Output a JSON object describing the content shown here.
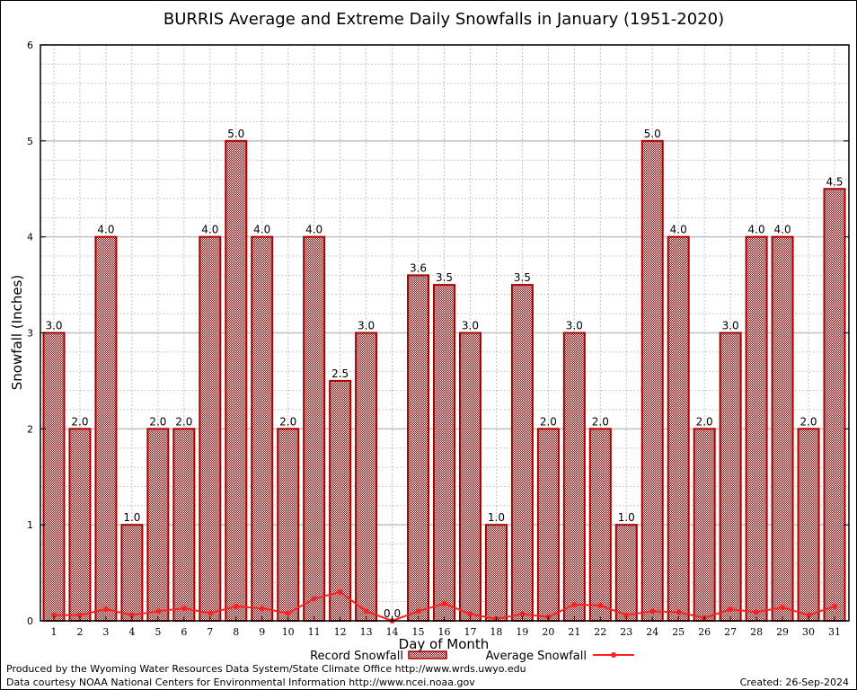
{
  "chart_data": {
    "type": "bar",
    "title": "BURRIS Average and Extreme Daily Snowfalls in January (1951-2020)",
    "xlabel": "Day of Month",
    "ylabel": "Snowfall (Inches)",
    "ylim": [
      0,
      6
    ],
    "yticks": [
      0,
      1,
      2,
      3,
      4,
      5,
      6
    ],
    "grid": true,
    "legend_position": "bottom",
    "categories": [
      "1",
      "2",
      "3",
      "4",
      "5",
      "6",
      "7",
      "8",
      "9",
      "10",
      "11",
      "12",
      "13",
      "14",
      "15",
      "16",
      "17",
      "18",
      "19",
      "20",
      "21",
      "22",
      "23",
      "24",
      "25",
      "26",
      "27",
      "28",
      "29",
      "30",
      "31"
    ],
    "series": [
      {
        "name": "Record Snowfall",
        "type": "bar",
        "color": "#aa0000",
        "values": [
          3.0,
          2.0,
          4.0,
          1.0,
          2.0,
          2.0,
          4.0,
          5.0,
          4.0,
          2.0,
          4.0,
          2.5,
          3.0,
          0.0,
          3.6,
          3.5,
          3.0,
          1.0,
          3.5,
          2.0,
          3.0,
          2.0,
          1.0,
          5.0,
          4.0,
          2.0,
          3.0,
          4.0,
          4.0,
          2.0,
          4.5
        ],
        "labels": [
          "3.0",
          "2.0",
          "4.0",
          "1.0",
          "2.0",
          "2.0",
          "4.0",
          "5.0",
          "4.0",
          "2.0",
          "4.0",
          "2.5",
          "3.0",
          "0.0",
          "3.6",
          "3.5",
          "3.0",
          "1.0",
          "3.5",
          "2.0",
          "3.0",
          "2.0",
          "1.0",
          "5.0",
          "4.0",
          "2.0",
          "3.0",
          "4.0",
          "4.0",
          "2.0",
          "4.5"
        ]
      },
      {
        "name": "Average Snowfall",
        "type": "line",
        "color": "#ff2020",
        "values": [
          0.06,
          0.06,
          0.12,
          0.06,
          0.1,
          0.13,
          0.08,
          0.15,
          0.13,
          0.08,
          0.23,
          0.3,
          0.1,
          0.0,
          0.1,
          0.18,
          0.07,
          0.02,
          0.07,
          0.04,
          0.17,
          0.16,
          0.06,
          0.1,
          0.09,
          0.03,
          0.12,
          0.09,
          0.14,
          0.06,
          0.15
        ]
      }
    ]
  },
  "footer": {
    "produced": "Produced by the Wyoming Water Resources Data System/State Climate Office http://www.wrds.uwyo.edu",
    "courtesy": "Data courtesy NOAA National Centers for Environmental Information http://www.ncei.noaa.gov",
    "created": "Created: 26-Sep-2024"
  }
}
